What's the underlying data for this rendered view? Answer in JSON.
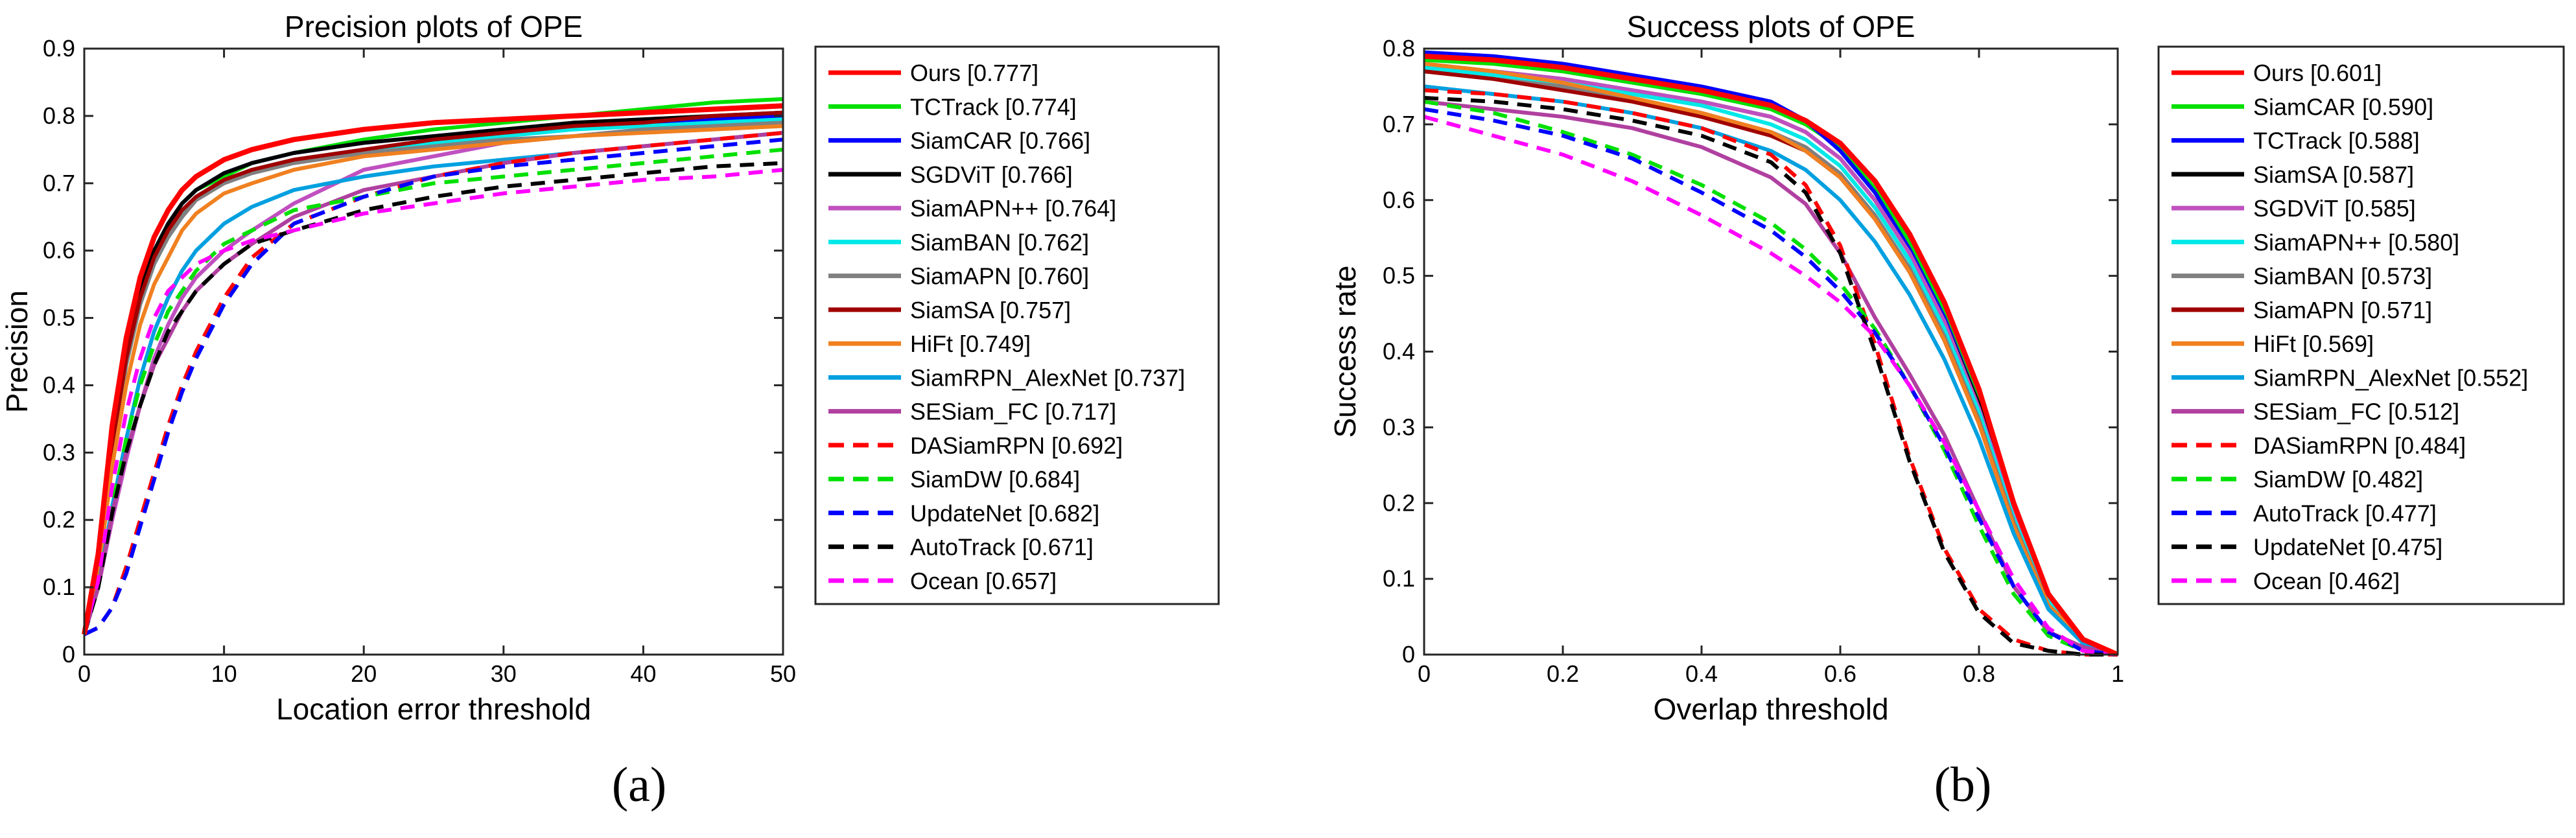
{
  "chart_data": [
    {
      "type": "line",
      "panel_label": "a",
      "title": "Precision plots of OPE",
      "xlabel": "Location error threshold",
      "ylabel": "Precision",
      "xlim": [
        0,
        50
      ],
      "ylim": [
        0,
        0.9
      ],
      "xticks": [
        "0",
        "10",
        "20",
        "30",
        "40",
        "50"
      ],
      "yticks": [
        "0",
        "0.1",
        "0.2",
        "0.3",
        "0.4",
        "0.5",
        "0.6",
        "0.7",
        "0.8",
        "0.9"
      ],
      "grid": false,
      "legend_position": "outside-right",
      "x": [
        0,
        1,
        2,
        3,
        4,
        5,
        6,
        7,
        8,
        10,
        12,
        15,
        20,
        25,
        30,
        35,
        40,
        45,
        50
      ],
      "series": [
        {
          "name": "Ours [0.777]",
          "color": "#ff0000",
          "dash": "solid",
          "values": [
            0.03,
            0.15,
            0.34,
            0.47,
            0.56,
            0.62,
            0.66,
            0.69,
            0.71,
            0.735,
            0.75,
            0.765,
            0.78,
            0.79,
            0.795,
            0.8,
            0.805,
            0.81,
            0.815
          ]
        },
        {
          "name": "TCTrack [0.774]",
          "color": "#00e000",
          "dash": "solid",
          "values": [
            0.03,
            0.14,
            0.32,
            0.45,
            0.54,
            0.6,
            0.64,
            0.67,
            0.69,
            0.71,
            0.73,
            0.745,
            0.765,
            0.78,
            0.79,
            0.8,
            0.81,
            0.82,
            0.825
          ]
        },
        {
          "name": "SiamCAR [0.766]",
          "color": "#0000ff",
          "dash": "solid",
          "values": [
            0.03,
            0.14,
            0.32,
            0.45,
            0.54,
            0.6,
            0.64,
            0.67,
            0.69,
            0.715,
            0.73,
            0.745,
            0.76,
            0.77,
            0.78,
            0.785,
            0.79,
            0.795,
            0.8
          ]
        },
        {
          "name": "SGDViT [0.766]",
          "color": "#000000",
          "dash": "solid",
          "values": [
            0.03,
            0.14,
            0.32,
            0.45,
            0.54,
            0.6,
            0.64,
            0.67,
            0.69,
            0.715,
            0.73,
            0.745,
            0.76,
            0.77,
            0.78,
            0.79,
            0.795,
            0.8,
            0.805
          ]
        },
        {
          "name": "SiamAPN++ [0.764]",
          "color": "#c050c0",
          "dash": "solid",
          "values": [
            0.03,
            0.1,
            0.2,
            0.29,
            0.37,
            0.44,
            0.49,
            0.53,
            0.56,
            0.6,
            0.63,
            0.67,
            0.72,
            0.74,
            0.76,
            0.77,
            0.78,
            0.785,
            0.79
          ]
        },
        {
          "name": "SiamBAN [0.762]",
          "color": "#00e8e8",
          "dash": "solid",
          "values": [
            0.03,
            0.13,
            0.3,
            0.43,
            0.52,
            0.58,
            0.62,
            0.65,
            0.68,
            0.705,
            0.72,
            0.735,
            0.75,
            0.76,
            0.77,
            0.78,
            0.785,
            0.79,
            0.795
          ]
        },
        {
          "name": "SiamAPN [0.760]",
          "color": "#808080",
          "dash": "solid",
          "values": [
            0.03,
            0.13,
            0.3,
            0.43,
            0.52,
            0.58,
            0.62,
            0.65,
            0.675,
            0.7,
            0.715,
            0.73,
            0.745,
            0.755,
            0.765,
            0.77,
            0.78,
            0.785,
            0.79
          ]
        },
        {
          "name": "SiamSA [0.757]",
          "color": "#a00000",
          "dash": "solid",
          "values": [
            0.03,
            0.13,
            0.31,
            0.44,
            0.53,
            0.59,
            0.63,
            0.66,
            0.68,
            0.705,
            0.72,
            0.735,
            0.75,
            0.765,
            0.775,
            0.785,
            0.79,
            0.8,
            0.805
          ]
        },
        {
          "name": "HiFt [0.749]",
          "color": "#f08020",
          "dash": "solid",
          "values": [
            0.03,
            0.12,
            0.28,
            0.4,
            0.49,
            0.55,
            0.59,
            0.63,
            0.655,
            0.685,
            0.7,
            0.72,
            0.74,
            0.75,
            0.76,
            0.77,
            0.775,
            0.78,
            0.785
          ]
        },
        {
          "name": "SiamRPN_AlexNet [0.737]",
          "color": "#00a0e0",
          "dash": "solid",
          "values": [
            0.03,
            0.1,
            0.22,
            0.32,
            0.41,
            0.48,
            0.53,
            0.57,
            0.6,
            0.64,
            0.665,
            0.69,
            0.71,
            0.725,
            0.735,
            0.745,
            0.755,
            0.765,
            0.775
          ]
        },
        {
          "name": "SESiam_FC [0.717]",
          "color": "#b040a0",
          "dash": "solid",
          "values": [
            0.03,
            0.1,
            0.21,
            0.3,
            0.37,
            0.43,
            0.47,
            0.51,
            0.54,
            0.58,
            0.61,
            0.65,
            0.69,
            0.71,
            0.73,
            0.745,
            0.755,
            0.765,
            0.775
          ]
        },
        {
          "name": "DASiamRPN [0.692]",
          "color": "#ff0000",
          "dash": "dashed",
          "values": [
            0.03,
            0.04,
            0.07,
            0.13,
            0.2,
            0.27,
            0.34,
            0.4,
            0.45,
            0.53,
            0.59,
            0.64,
            0.68,
            0.71,
            0.73,
            0.745,
            0.755,
            0.765,
            0.775
          ]
        },
        {
          "name": "SiamDW [0.684]",
          "color": "#00e000",
          "dash": "dashed",
          "values": [
            0.03,
            0.1,
            0.22,
            0.32,
            0.4,
            0.46,
            0.51,
            0.54,
            0.57,
            0.61,
            0.63,
            0.66,
            0.68,
            0.7,
            0.71,
            0.72,
            0.73,
            0.74,
            0.75
          ]
        },
        {
          "name": "UpdateNet [0.682]",
          "color": "#0000ff",
          "dash": "dashed",
          "values": [
            0.03,
            0.04,
            0.07,
            0.12,
            0.19,
            0.26,
            0.33,
            0.39,
            0.44,
            0.52,
            0.58,
            0.64,
            0.68,
            0.71,
            0.725,
            0.735,
            0.745,
            0.755,
            0.765
          ]
        },
        {
          "name": "AutoTrack [0.671]",
          "color": "#000000",
          "dash": "dashed",
          "values": [
            0.03,
            0.1,
            0.21,
            0.3,
            0.37,
            0.43,
            0.48,
            0.51,
            0.54,
            0.58,
            0.61,
            0.63,
            0.66,
            0.68,
            0.695,
            0.705,
            0.715,
            0.725,
            0.73
          ]
        },
        {
          "name": "Ocean [0.657]",
          "color": "#ff00ff",
          "dash": "dashed",
          "values": [
            0.03,
            0.11,
            0.25,
            0.36,
            0.44,
            0.5,
            0.54,
            0.56,
            0.58,
            0.6,
            0.615,
            0.63,
            0.655,
            0.67,
            0.685,
            0.695,
            0.705,
            0.71,
            0.72
          ]
        }
      ]
    },
    {
      "type": "line",
      "panel_label": "b",
      "title": "Success plots of OPE",
      "xlabel": "Overlap threshold",
      "ylabel": "Success rate",
      "xlim": [
        0,
        1
      ],
      "ylim": [
        0,
        0.8
      ],
      "xticks": [
        "0",
        "0.2",
        "0.4",
        "0.6",
        "0.8",
        "1"
      ],
      "yticks": [
        "0",
        "0.1",
        "0.2",
        "0.3",
        "0.4",
        "0.5",
        "0.6",
        "0.7",
        "0.8"
      ],
      "grid": false,
      "legend_position": "outside-right",
      "x": [
        0,
        0.1,
        0.2,
        0.3,
        0.4,
        0.5,
        0.55,
        0.6,
        0.65,
        0.7,
        0.75,
        0.8,
        0.85,
        0.9,
        0.95,
        1.0
      ],
      "series": [
        {
          "name": "Ours [0.601]",
          "color": "#ff0000",
          "dash": "solid",
          "values": [
            0.79,
            0.785,
            0.775,
            0.76,
            0.745,
            0.725,
            0.705,
            0.675,
            0.625,
            0.555,
            0.465,
            0.35,
            0.2,
            0.08,
            0.02,
            0.0
          ]
        },
        {
          "name": "SiamCAR [0.590]",
          "color": "#00e000",
          "dash": "solid",
          "values": [
            0.785,
            0.78,
            0.77,
            0.755,
            0.74,
            0.72,
            0.7,
            0.67,
            0.615,
            0.545,
            0.455,
            0.34,
            0.19,
            0.075,
            0.02,
            0.0
          ]
        },
        {
          "name": "TCTrack [0.588]",
          "color": "#0000ff",
          "dash": "solid",
          "values": [
            0.795,
            0.79,
            0.78,
            0.765,
            0.75,
            0.73,
            0.705,
            0.665,
            0.61,
            0.535,
            0.445,
            0.33,
            0.185,
            0.07,
            0.02,
            0.0
          ]
        },
        {
          "name": "SiamSA [0.587]",
          "color": "#000000",
          "dash": "solid",
          "values": [
            0.78,
            0.77,
            0.76,
            0.745,
            0.73,
            0.71,
            0.69,
            0.655,
            0.6,
            0.53,
            0.44,
            0.33,
            0.185,
            0.07,
            0.02,
            0.0
          ]
        },
        {
          "name": "SGDViT [0.585]",
          "color": "#c050c0",
          "dash": "solid",
          "values": [
            0.775,
            0.77,
            0.76,
            0.745,
            0.73,
            0.71,
            0.69,
            0.655,
            0.6,
            0.53,
            0.44,
            0.325,
            0.185,
            0.07,
            0.02,
            0.0
          ]
        },
        {
          "name": "SiamAPN++ [0.580]",
          "color": "#00e8e8",
          "dash": "solid",
          "values": [
            0.775,
            0.765,
            0.755,
            0.74,
            0.725,
            0.7,
            0.68,
            0.645,
            0.59,
            0.52,
            0.43,
            0.32,
            0.18,
            0.07,
            0.02,
            0.0
          ]
        },
        {
          "name": "SiamBAN [0.573]",
          "color": "#808080",
          "dash": "solid",
          "values": [
            0.77,
            0.76,
            0.75,
            0.735,
            0.715,
            0.69,
            0.67,
            0.635,
            0.58,
            0.51,
            0.42,
            0.31,
            0.175,
            0.065,
            0.02,
            0.0
          ]
        },
        {
          "name": "SiamAPN [0.571]",
          "color": "#a00000",
          "dash": "solid",
          "values": [
            0.77,
            0.76,
            0.745,
            0.73,
            0.71,
            0.685,
            0.665,
            0.63,
            0.575,
            0.505,
            0.415,
            0.305,
            0.17,
            0.065,
            0.02,
            0.0
          ]
        },
        {
          "name": "HiFt [0.569]",
          "color": "#f08020",
          "dash": "solid",
          "values": [
            0.78,
            0.77,
            0.755,
            0.735,
            0.715,
            0.69,
            0.665,
            0.63,
            0.575,
            0.505,
            0.415,
            0.305,
            0.17,
            0.065,
            0.02,
            0.0
          ]
        },
        {
          "name": "SiamRPN_AlexNet [0.552]",
          "color": "#00a0e0",
          "dash": "solid",
          "values": [
            0.75,
            0.74,
            0.73,
            0.715,
            0.695,
            0.665,
            0.64,
            0.6,
            0.545,
            0.475,
            0.39,
            0.285,
            0.16,
            0.06,
            0.015,
            0.0
          ]
        },
        {
          "name": "SESiam_FC [0.512]",
          "color": "#b040a0",
          "dash": "solid",
          "values": [
            0.73,
            0.72,
            0.71,
            0.695,
            0.67,
            0.63,
            0.595,
            0.53,
            0.445,
            0.37,
            0.29,
            0.19,
            0.09,
            0.03,
            0.01,
            0.0
          ]
        },
        {
          "name": "DASiamRPN [0.484]",
          "color": "#ff0000",
          "dash": "dashed",
          "values": [
            0.745,
            0.74,
            0.73,
            0.715,
            0.695,
            0.66,
            0.62,
            0.54,
            0.41,
            0.26,
            0.14,
            0.06,
            0.02,
            0.005,
            0.0,
            0.0
          ]
        },
        {
          "name": "SiamDW [0.482]",
          "color": "#00e000",
          "dash": "dashed",
          "values": [
            0.73,
            0.715,
            0.69,
            0.66,
            0.62,
            0.57,
            0.535,
            0.49,
            0.43,
            0.355,
            0.27,
            0.17,
            0.08,
            0.025,
            0.005,
            0.0
          ]
        },
        {
          "name": "AutoTrack [0.477]",
          "color": "#0000ff",
          "dash": "dashed",
          "values": [
            0.72,
            0.705,
            0.685,
            0.655,
            0.61,
            0.56,
            0.525,
            0.48,
            0.425,
            0.355,
            0.275,
            0.18,
            0.09,
            0.03,
            0.005,
            0.0
          ]
        },
        {
          "name": "UpdateNet [0.475]",
          "color": "#000000",
          "dash": "dashed",
          "values": [
            0.735,
            0.73,
            0.72,
            0.705,
            0.685,
            0.65,
            0.61,
            0.53,
            0.4,
            0.255,
            0.135,
            0.055,
            0.015,
            0.005,
            0.0,
            0.0
          ]
        },
        {
          "name": "Ocean [0.462]",
          "color": "#ff00ff",
          "dash": "dashed",
          "values": [
            0.71,
            0.685,
            0.66,
            0.625,
            0.58,
            0.53,
            0.5,
            0.465,
            0.42,
            0.355,
            0.28,
            0.19,
            0.1,
            0.035,
            0.005,
            0.0
          ]
        }
      ]
    }
  ],
  "captions": {
    "a": "(a)",
    "b": "(b)"
  }
}
